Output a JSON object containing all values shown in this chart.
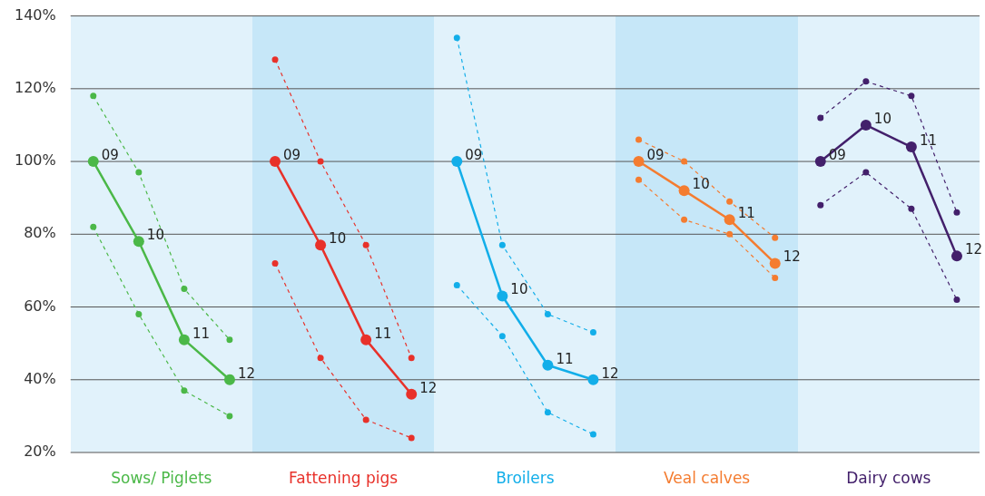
{
  "chart_data": {
    "type": "line",
    "categories": [
      "09",
      "10",
      "11",
      "12",
      "09",
      "10",
      "11",
      "12",
      "09",
      "10",
      "11",
      "12",
      "09",
      "10",
      "11",
      "12",
      "09",
      "10",
      "11",
      "12"
    ],
    "ylim": [
      20,
      140
    ],
    "yticks": [
      {
        "value": 20,
        "label": "20%"
      },
      {
        "value": 40,
        "label": "40%"
      },
      {
        "value": 60,
        "label": "60%"
      },
      {
        "value": 80,
        "label": "80%"
      },
      {
        "value": 100,
        "label": "100%"
      },
      {
        "value": 120,
        "label": "120%"
      },
      {
        "value": 140,
        "label": "140%"
      }
    ],
    "grid": "y",
    "legend": false,
    "marker": "circle",
    "tick_labels": "y",
    "annotations": [
      "Sows/ Piglets",
      "Fattening pigs",
      "Broilers",
      "Veal calves",
      "Dairy cows"
    ],
    "series": [
      {
        "color": "#4bb848",
        "line_style": "solid",
        "values": [
          100,
          78,
          51,
          40,
          null,
          null,
          null,
          null,
          null,
          null,
          null,
          null,
          null,
          null,
          null,
          null,
          null,
          null,
          null,
          null
        ]
      },
      {
        "color": "#4bb848",
        "line_style": "dashed",
        "values": [
          118,
          97,
          65,
          51,
          null,
          null,
          null,
          null,
          null,
          null,
          null,
          null,
          null,
          null,
          null,
          null,
          null,
          null,
          null,
          null
        ]
      },
      {
        "color": "#4bb848",
        "line_style": "dashed",
        "values": [
          82,
          58,
          37,
          30,
          null,
          null,
          null,
          null,
          null,
          null,
          null,
          null,
          null,
          null,
          null,
          null,
          null,
          null,
          null,
          null
        ]
      },
      {
        "color": "#e8312a",
        "line_style": "solid",
        "values": [
          null,
          null,
          null,
          null,
          100,
          77,
          51,
          36,
          null,
          null,
          null,
          null,
          null,
          null,
          null,
          null,
          null,
          null,
          null,
          null
        ]
      },
      {
        "color": "#e8312a",
        "line_style": "dashed",
        "values": [
          null,
          null,
          null,
          null,
          128,
          100,
          77,
          46,
          null,
          null,
          null,
          null,
          null,
          null,
          null,
          null,
          null,
          null,
          null,
          null
        ]
      },
      {
        "color": "#e8312a",
        "line_style": "dashed",
        "values": [
          null,
          null,
          null,
          null,
          72,
          46,
          29,
          24,
          null,
          null,
          null,
          null,
          null,
          null,
          null,
          null,
          null,
          null,
          null,
          null
        ]
      },
      {
        "color": "#12aee9",
        "line_style": "solid",
        "values": [
          null,
          null,
          null,
          null,
          null,
          null,
          null,
          null,
          100,
          63,
          44,
          40,
          null,
          null,
          null,
          null,
          null,
          null,
          null,
          null
        ]
      },
      {
        "color": "#12aee9",
        "line_style": "dashed",
        "values": [
          null,
          null,
          null,
          null,
          null,
          null,
          null,
          null,
          134,
          77,
          58,
          53,
          null,
          null,
          null,
          null,
          null,
          null,
          null,
          null
        ]
      },
      {
        "color": "#12aee9",
        "line_style": "dashed",
        "values": [
          null,
          null,
          null,
          null,
          null,
          null,
          null,
          null,
          66,
          52,
          31,
          25,
          null,
          null,
          null,
          null,
          null,
          null,
          null,
          null
        ]
      },
      {
        "color": "#f47c30",
        "line_style": "solid",
        "values": [
          null,
          null,
          null,
          null,
          null,
          null,
          null,
          null,
          null,
          null,
          null,
          null,
          100,
          92,
          84,
          72,
          null,
          null,
          null,
          null
        ]
      },
      {
        "color": "#f47c30",
        "line_style": "dashed",
        "values": [
          null,
          null,
          null,
          null,
          null,
          null,
          null,
          null,
          null,
          null,
          null,
          null,
          106,
          100,
          89,
          79,
          null,
          null,
          null,
          null
        ]
      },
      {
        "color": "#f47c30",
        "line_style": "dashed",
        "values": [
          null,
          null,
          null,
          null,
          null,
          null,
          null,
          null,
          null,
          null,
          null,
          null,
          95,
          84,
          80,
          68,
          null,
          null,
          null,
          null
        ]
      },
      {
        "color": "#43206b",
        "line_style": "solid",
        "values": [
          null,
          null,
          null,
          null,
          null,
          null,
          null,
          null,
          null,
          null,
          null,
          null,
          null,
          null,
          null,
          null,
          100,
          110,
          104,
          74
        ]
      },
      {
        "color": "#43206b",
        "line_style": "dashed",
        "values": [
          null,
          null,
          null,
          null,
          null,
          null,
          null,
          null,
          null,
          null,
          null,
          null,
          null,
          null,
          null,
          null,
          112,
          122,
          118,
          86
        ]
      },
      {
        "color": "#43206b",
        "line_style": "dashed",
        "values": [
          null,
          null,
          null,
          null,
          null,
          null,
          null,
          null,
          null,
          null,
          null,
          null,
          null,
          null,
          null,
          null,
          88,
          97,
          87,
          62
        ]
      }
    ]
  }
}
